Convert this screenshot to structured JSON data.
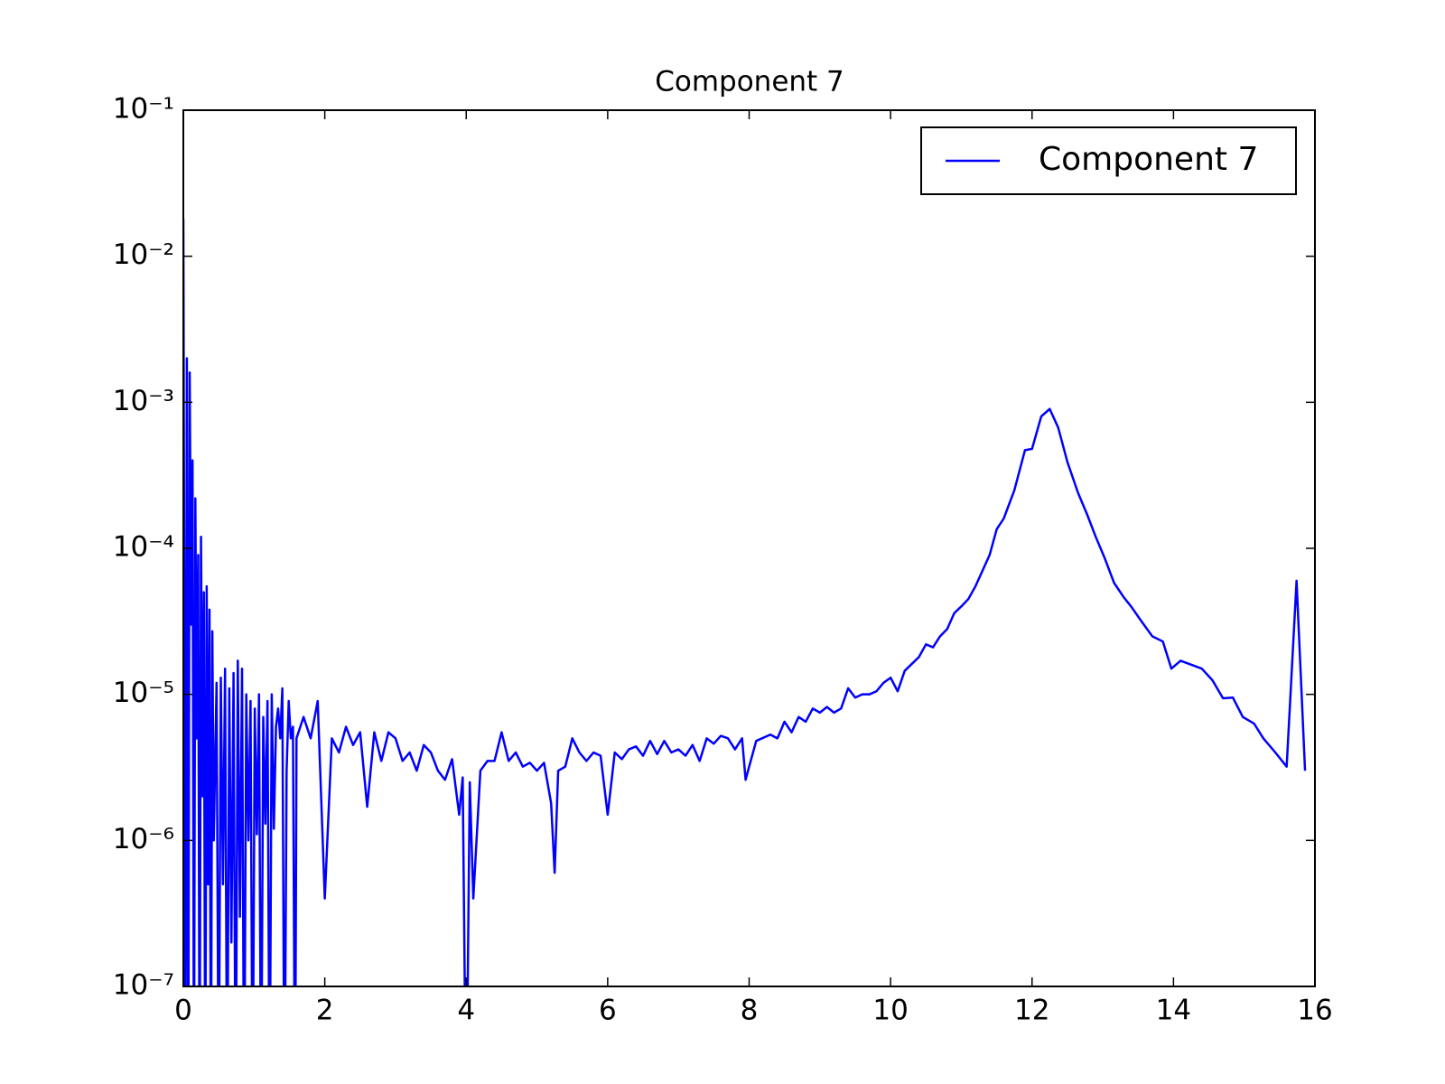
{
  "chart_data": {
    "type": "line",
    "title": "Component 7",
    "log_y": true,
    "legend": "upper right",
    "xlim": [
      0,
      16
    ],
    "xticks": [
      0,
      2,
      4,
      6,
      8,
      10,
      12,
      14,
      16
    ],
    "ylim": [
      1e-07,
      0.1
    ],
    "yticks": [
      {
        "value": 1e-07,
        "label": "10⁻⁷"
      },
      {
        "value": 1e-06,
        "label": "10⁻⁶"
      },
      {
        "value": 1e-05,
        "label": "10⁻⁵"
      },
      {
        "value": 0.0001,
        "label": "10⁻⁴"
      },
      {
        "value": 0.001,
        "label": "10⁻³"
      },
      {
        "value": 0.01,
        "label": "10⁻²"
      },
      {
        "value": 0.1,
        "label": "10⁻¹"
      }
    ],
    "x": [
      0,
      0.03,
      0.05,
      0.07,
      0.09,
      0.11,
      0.13,
      0.15,
      0.17,
      0.19,
      0.21,
      0.23,
      0.25,
      0.27,
      0.29,
      0.31,
      0.33,
      0.35,
      0.37,
      0.39,
      0.41,
      0.43,
      0.47,
      0.5,
      0.53,
      0.56,
      0.59,
      0.62,
      0.65,
      0.68,
      0.71,
      0.74,
      0.77,
      0.8,
      0.83,
      0.86,
      0.89,
      0.92,
      0.95,
      0.98,
      1.01,
      1.04,
      1.07,
      1.1,
      1.13,
      1.16,
      1.19,
      1.22,
      1.25,
      1.28,
      1.31,
      1.34,
      1.37,
      1.4,
      1.43,
      1.46,
      1.49,
      1.52,
      1.55,
      1.58,
      1.6,
      1.7,
      1.8,
      1.9,
      2.0,
      2.1,
      2.2,
      2.3,
      2.4,
      2.5,
      2.6,
      2.7,
      2.8,
      2.9,
      3.0,
      3.1,
      3.2,
      3.3,
      3.4,
      3.5,
      3.6,
      3.7,
      3.8,
      3.9,
      3.95,
      4.0,
      4.05,
      4.1,
      4.2,
      4.3,
      4.4,
      4.5,
      4.6,
      4.7,
      4.8,
      4.9,
      5.0,
      5.1,
      5.2,
      5.25,
      5.3,
      5.4,
      5.5,
      5.6,
      5.7,
      5.8,
      5.9,
      6.0,
      6.1,
      6.2,
      6.3,
      6.4,
      6.5,
      6.6,
      6.7,
      6.8,
      6.9,
      7.0,
      7.1,
      7.2,
      7.3,
      7.4,
      7.5,
      7.6,
      7.7,
      7.8,
      7.9,
      7.95,
      8.0,
      8.1,
      8.3,
      8.4,
      8.5,
      8.6,
      8.7,
      8.8,
      8.9,
      9.0,
      9.1,
      9.2,
      9.3,
      9.4,
      9.5,
      9.6,
      9.7,
      9.8,
      9.9,
      10.0,
      10.1,
      10.2,
      10.4,
      10.5,
      10.6,
      10.7,
      10.8,
      10.9,
      11.0,
      11.1,
      11.2,
      11.4,
      11.5,
      11.6,
      11.75,
      11.9,
      12.0,
      12.13,
      12.25,
      12.37,
      12.5,
      12.65,
      12.78,
      12.9,
      13.03,
      13.16,
      13.3,
      13.4,
      13.54,
      13.7,
      13.85,
      13.97,
      14.1,
      14.4,
      14.55,
      14.7,
      14.84,
      14.98,
      15.14,
      15.27,
      15.44,
      15.6,
      15.74,
      15.86
    ],
    "series": [
      {
        "name": "Component 7",
        "color": "#0000ff",
        "values": [
          0.018,
          2e-08,
          0.002,
          1e-08,
          0.0016,
          3e-05,
          0.0004,
          1e-08,
          0.00022,
          5e-06,
          9e-05,
          1e-08,
          0.00012,
          2e-06,
          5e-05,
          1e-08,
          5.5e-05,
          5e-07,
          3.8e-05,
          1e-08,
          2.7e-05,
          1e-06,
          1.2e-05,
          1e-08,
          1.3e-05,
          5e-07,
          1.5e-05,
          1e-08,
          1.1e-05,
          2e-07,
          1.4e-05,
          1e-08,
          1.7e-05,
          3e-07,
          1.5e-05,
          1e-08,
          1e-05,
          1e-06,
          9e-06,
          1e-08,
          8e-06,
          1.1e-06,
          1e-05,
          1e-08,
          7e-06,
          1.3e-06,
          9e-06,
          1e-08,
          1e-05,
          1.2e-06,
          6e-06,
          8e-06,
          5e-06,
          1.1e-05,
          1e-08,
          3e-06,
          9e-06,
          5e-06,
          6e-06,
          1e-08,
          5e-06,
          7e-06,
          5e-06,
          9e-06,
          4e-07,
          5e-06,
          4e-06,
          6e-06,
          4.5e-06,
          5.5e-06,
          1.7e-06,
          5.5e-06,
          3.5e-06,
          5.5e-06,
          5e-06,
          3.5e-06,
          4e-06,
          3e-06,
          4.5e-06,
          4e-06,
          3e-06,
          2.6e-06,
          3.6e-06,
          1.5e-06,
          2.7e-06,
          1e-08,
          2.5e-06,
          4e-07,
          3e-06,
          3.5e-06,
          3.5e-06,
          5.5e-06,
          3.5e-06,
          4e-06,
          3.2e-06,
          3.4e-06,
          3e-06,
          3.4e-06,
          1.8e-06,
          6e-07,
          3e-06,
          3.2e-06,
          5e-06,
          4e-06,
          3.5e-06,
          4e-06,
          3.8e-06,
          1.5e-06,
          4e-06,
          3.6e-06,
          4.2e-06,
          4.4e-06,
          3.8e-06,
          4.8e-06,
          3.9e-06,
          4.8e-06,
          4e-06,
          4.2e-06,
          3.8e-06,
          4.5e-06,
          3.5e-06,
          5e-06,
          4.6e-06,
          5.2e-06,
          5e-06,
          4.2e-06,
          5e-06,
          2.6e-06,
          3.2e-06,
          4.8e-06,
          5.3e-06,
          5e-06,
          6.5e-06,
          5.5e-06,
          7e-06,
          6.5e-06,
          8e-06,
          7.5e-06,
          8.2e-06,
          7.5e-06,
          8e-06,
          1.1e-05,
          9.5e-06,
          1e-05,
          1e-05,
          1.05e-05,
          1.2e-05,
          1.3e-05,
          1.05e-05,
          1.45e-05,
          1.8e-05,
          2.2e-05,
          2.1e-05,
          2.5e-05,
          2.8e-05,
          3.6e-05,
          4e-05,
          4.5e-05,
          5.5e-05,
          9e-05,
          0.000135,
          0.00016,
          0.00025,
          0.00047,
          0.00048,
          0.0008,
          0.0009,
          0.00067,
          0.00039,
          0.00024,
          0.00017,
          0.00012,
          8.5e-05,
          5.8e-05,
          4.6e-05,
          4e-05,
          3.2e-05,
          2.5e-05,
          2.3e-05,
          1.5e-05,
          1.7e-05,
          1.5e-05,
          1.25e-05,
          9.4e-06,
          9.5e-06,
          7e-06,
          6.3e-06,
          5e-06,
          4e-06,
          3.2e-06,
          6e-05,
          3e-06
        ]
      }
    ]
  }
}
